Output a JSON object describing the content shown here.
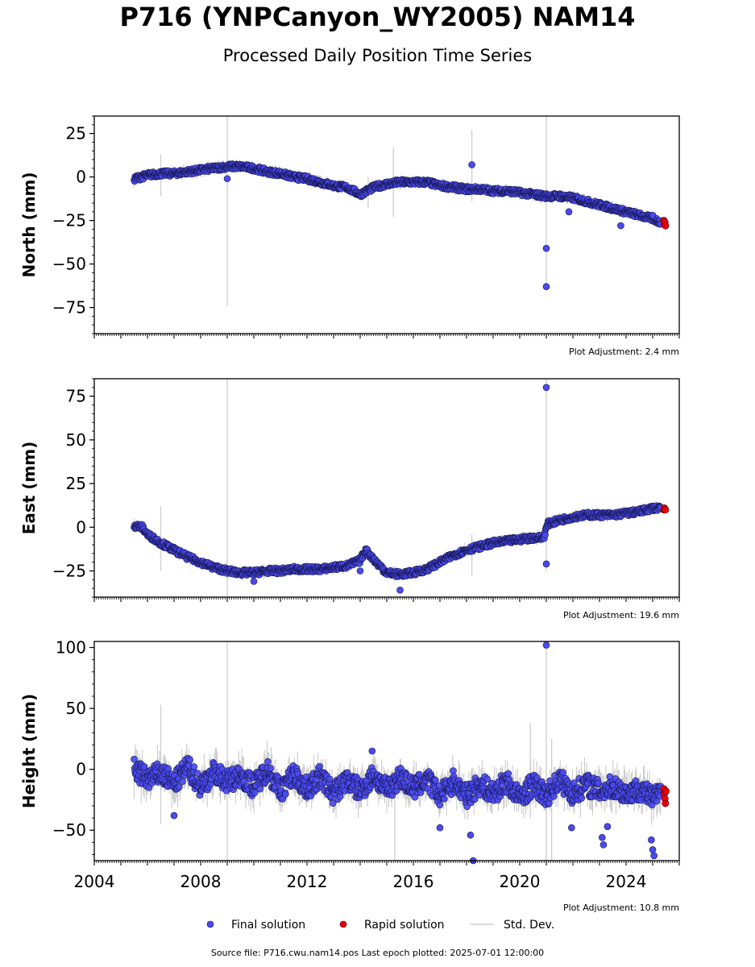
{
  "header": {
    "title": "P716 (YNPCanyon_WY2005) NAM14",
    "subtitle": "Processed Daily Position Time Series"
  },
  "chart_data": [
    {
      "type": "scatter",
      "ylabel": "North (mm)",
      "ylim": [
        -90,
        35
      ],
      "yticks": [
        25,
        0,
        -25,
        -50,
        -75
      ],
      "xlim": [
        2004.0,
        2026.0
      ],
      "adjustment": "Plot Adjustment: 2.4 mm",
      "series": [
        {
          "name": "Final solution",
          "x": [
            2005.5,
            2006.0,
            2006.5,
            2007.0,
            2007.5,
            2008.0,
            2008.5,
            2009.0,
            2009.5,
            2010.0,
            2010.5,
            2011.0,
            2011.5,
            2012.0,
            2012.5,
            2013.0,
            2013.5,
            2014.0,
            2014.5,
            2015.0,
            2015.5,
            2016.0,
            2016.5,
            2017.0,
            2017.5,
            2018.0,
            2018.5,
            2019.0,
            2019.5,
            2020.0,
            2020.5,
            2021.0,
            2021.5,
            2022.0,
            2022.5,
            2023.0,
            2023.5,
            2024.0,
            2024.5,
            2025.0,
            2025.3
          ],
          "y": [
            -1,
            1,
            2,
            2,
            3,
            4,
            5,
            6,
            6,
            5,
            3,
            2,
            0,
            -1,
            -3,
            -5,
            -6,
            -10,
            -6,
            -4,
            -3,
            -3,
            -3,
            -5,
            -6,
            -7,
            -7,
            -8,
            -8,
            -9,
            -10,
            -11,
            -11,
            -12,
            -14,
            -16,
            -18,
            -20,
            -22,
            -24,
            -26
          ]
        },
        {
          "name": "Rapid solution",
          "x": [
            2025.42,
            2025.44,
            2025.46,
            2025.48
          ],
          "y": [
            -25,
            -27,
            -26,
            -28
          ]
        }
      ],
      "outliers": {
        "x": [
          2009.0,
          2018.2,
          2021.0,
          2021.0,
          2021.85,
          2025.0,
          2023.8
        ],
        "y": [
          -1,
          7,
          -41,
          -63,
          -20,
          -22,
          -28
        ]
      },
      "stddev_spikes": [
        {
          "x": 2009.0,
          "lo": -74,
          "hi": 35
        },
        {
          "x": 2021.0,
          "lo": -64,
          "hi": 35
        },
        {
          "x": 2018.2,
          "lo": -14,
          "hi": 27
        },
        {
          "x": 2015.25,
          "lo": -23,
          "hi": 17
        },
        {
          "x": 2006.5,
          "lo": -11,
          "hi": 13
        },
        {
          "x": 2014.3,
          "lo": -18,
          "hi": 0
        }
      ]
    },
    {
      "type": "scatter",
      "ylabel": "East (mm)",
      "ylim": [
        -40,
        85
      ],
      "yticks": [
        75,
        50,
        25,
        0,
        -25
      ],
      "xlim": [
        2004.0,
        2026.0
      ],
      "adjustment": "Plot Adjustment: 19.6 mm",
      "series": [
        {
          "name": "Final solution",
          "x": [
            2005.5,
            2005.8,
            2006.0,
            2006.5,
            2007.0,
            2007.5,
            2008.0,
            2008.5,
            2009.0,
            2009.5,
            2010.0,
            2010.5,
            2011.0,
            2011.5,
            2012.0,
            2012.5,
            2013.0,
            2013.5,
            2014.0,
            2014.2,
            2014.6,
            2015.0,
            2015.5,
            2016.0,
            2016.5,
            2017.0,
            2017.5,
            2018.0,
            2018.5,
            2019.0,
            2019.5,
            2020.0,
            2020.5,
            2020.9,
            2021.05,
            2021.5,
            2022.0,
            2022.5,
            2023.0,
            2023.5,
            2024.0,
            2024.5,
            2025.0,
            2025.3
          ],
          "y": [
            1,
            0,
            -4,
            -9,
            -13,
            -17,
            -20,
            -23,
            -25,
            -26,
            -26,
            -25,
            -25,
            -24,
            -24,
            -24,
            -23,
            -22,
            -19,
            -13,
            -20,
            -26,
            -27,
            -26,
            -24,
            -20,
            -16,
            -13,
            -11,
            -9,
            -8,
            -7,
            -6,
            -6,
            2,
            4,
            6,
            7,
            7,
            7,
            8,
            9,
            11,
            11
          ]
        },
        {
          "name": "Rapid solution",
          "x": [
            2025.42,
            2025.44,
            2025.46,
            2025.48
          ],
          "y": [
            10,
            11,
            10,
            10
          ]
        }
      ],
      "outliers": {
        "x": [
          2021.0,
          2021.0,
          2015.5,
          2010.0,
          2014.0
        ],
        "y": [
          80,
          -21,
          -36,
          -31,
          -25
        ]
      },
      "stddev_spikes": [
        {
          "x": 2009.0,
          "lo": -40,
          "hi": 85
        },
        {
          "x": 2021.0,
          "lo": -25,
          "hi": 85
        },
        {
          "x": 2006.5,
          "lo": -25,
          "hi": 12
        },
        {
          "x": 2018.2,
          "lo": -28,
          "hi": -4
        }
      ]
    },
    {
      "type": "scatter",
      "ylabel": "Height (mm)",
      "ylim": [
        -75,
        105
      ],
      "yticks": [
        100,
        50,
        0,
        -50
      ],
      "xlim": [
        2004.0,
        2026.0
      ],
      "xticks": [
        "2004",
        "2008",
        "2012",
        "2016",
        "2020",
        "2024"
      ],
      "adjustment": "Plot Adjustment: 10.8 mm",
      "series": [
        {
          "name": "Final solution",
          "x": [
            2005.5,
            2006.0,
            2006.5,
            2007.0,
            2007.5,
            2008.0,
            2008.5,
            2009.0,
            2009.5,
            2010.0,
            2010.5,
            2011.0,
            2011.5,
            2012.0,
            2012.5,
            2013.0,
            2013.5,
            2014.0,
            2014.5,
            2015.0,
            2015.5,
            2016.0,
            2016.5,
            2017.0,
            2017.5,
            2018.0,
            2018.5,
            2019.0,
            2019.5,
            2020.0,
            2020.5,
            2021.0,
            2021.5,
            2022.0,
            2022.5,
            2023.0,
            2023.5,
            2024.0,
            2024.5,
            2025.0,
            2025.3
          ],
          "y": [
            0,
            -8,
            -3,
            -12,
            2,
            -14,
            -2,
            -10,
            -5,
            -14,
            0,
            -18,
            -4,
            -16,
            -6,
            -20,
            -8,
            -18,
            -5,
            -17,
            -6,
            -16,
            -8,
            -22,
            -10,
            -22,
            -12,
            -20,
            -10,
            -24,
            -12,
            -22,
            -8,
            -20,
            -12,
            -18,
            -14,
            -20,
            -16,
            -24,
            -20
          ]
        },
        {
          "name": "Rapid solution",
          "x": [
            2025.42,
            2025.44,
            2025.46,
            2025.48,
            2025.5
          ],
          "y": [
            -16,
            -20,
            -24,
            -28,
            -18
          ]
        }
      ],
      "outliers": {
        "x": [
          2021.0,
          2018.15,
          2018.25,
          2007.0,
          2017.0,
          2023.1,
          2023.15,
          2024.95,
          2025.0,
          2025.05,
          2014.45,
          2021.95,
          2023.3
        ],
        "y": [
          102,
          -54,
          -75,
          -38,
          -48,
          -56,
          -62,
          -58,
          -66,
          -71,
          15,
          -48,
          -47
        ]
      },
      "stddev_spikes": [
        {
          "x": 2009.0,
          "lo": -75,
          "hi": 105
        },
        {
          "x": 2021.0,
          "lo": -75,
          "hi": 105
        },
        {
          "x": 2006.5,
          "lo": -45,
          "hi": 53
        },
        {
          "x": 2015.3,
          "lo": -75,
          "hi": 0
        },
        {
          "x": 2020.4,
          "lo": -40,
          "hi": 38
        },
        {
          "x": 2021.2,
          "lo": -75,
          "hi": 25
        }
      ]
    }
  ],
  "legend": [
    {
      "label": "Final solution",
      "color": "#4a4af0"
    },
    {
      "label": "Rapid solution",
      "color": "#e8000b"
    },
    {
      "label": "Std. Dev.",
      "color": "#cfcfcf"
    }
  ],
  "footer": {
    "text": "Source file: P716.cwu.nam14.pos  Last epoch plotted: 2025-07-01 12:00:00"
  },
  "colors": {
    "final": "#4a4af0",
    "rapid": "#e8000b",
    "stddev": "#cfcfcf"
  }
}
